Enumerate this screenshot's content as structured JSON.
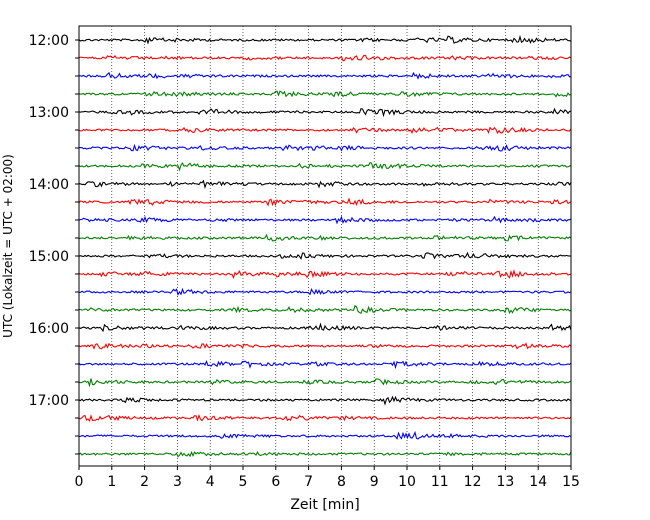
{
  "chart_data": {
    "type": "line",
    "title": "",
    "xlabel": "Zeit  [min]",
    "ylabel": "UTC (Lokalzeit = UTC + 02:00)",
    "xlim": [
      0,
      15
    ],
    "x_ticks": [
      "0",
      "1",
      "2",
      "3",
      "4",
      "5",
      "6",
      "7",
      "8",
      "9",
      "10",
      "11",
      "12",
      "13",
      "14",
      "15"
    ],
    "grid": "vertical dotted",
    "y_ticks": [
      "12:00",
      "13:00",
      "14:00",
      "15:00",
      "16:00",
      "17:00"
    ],
    "trace_interval_min": 15,
    "trace_colors": [
      "#000000",
      "#ff0000",
      "#0000ff",
      "#008000"
    ],
    "traces_start": [
      "12:00",
      "12:15",
      "12:30",
      "12:45",
      "13:00",
      "13:15",
      "13:30",
      "13:45",
      "14:00",
      "14:15",
      "14:30",
      "14:45",
      "15:00",
      "15:15",
      "15:30",
      "15:45",
      "16:00",
      "16:15",
      "16:30",
      "16:45",
      "17:00",
      "17:15",
      "17:30",
      "17:45"
    ]
  }
}
